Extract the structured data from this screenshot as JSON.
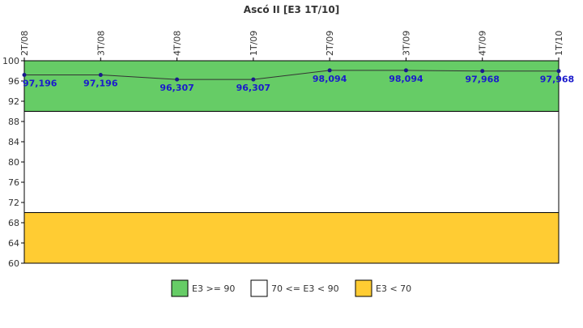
{
  "chart_data": {
    "type": "line",
    "title": "Ascó II [E3 1T/10]",
    "categories": [
      "2T/08",
      "3T/08",
      "4T/08",
      "1T/09",
      "2T/09",
      "3T/09",
      "4T/09",
      "1T/10"
    ],
    "series": [
      {
        "values": [
          97.196,
          97.196,
          96.307,
          96.307,
          98.094,
          98.094,
          97.968,
          97.968
        ],
        "labels": [
          "97,196",
          "97,196",
          "96,307",
          "96,307",
          "98,094",
          "98,094",
          "97,968",
          "97,968"
        ]
      }
    ],
    "ylim": [
      60,
      100
    ],
    "yticks": [
      60,
      64,
      68,
      72,
      76,
      80,
      84,
      88,
      92,
      96,
      100
    ],
    "bands": [
      {
        "from": 90,
        "to": 100,
        "color": "#66cc66",
        "legend": "E3 >= 90"
      },
      {
        "from": 70,
        "to": 90,
        "color": "#ffffff",
        "legend": "70 <= E3 < 90"
      },
      {
        "from": 60,
        "to": 70,
        "color": "#ffcc33",
        "legend": "E3 < 70"
      }
    ],
    "line_color": "#333333",
    "marker_color": "#1a1a8c",
    "legend_position": "bottom"
  }
}
